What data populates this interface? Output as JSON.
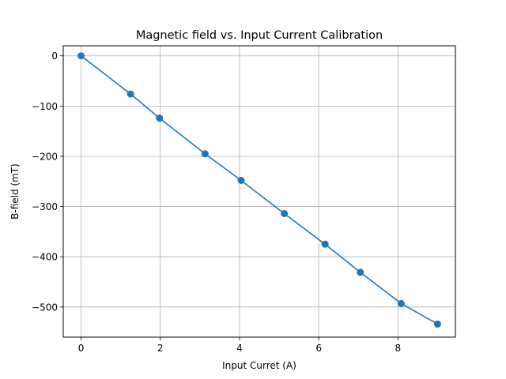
{
  "chart_data": {
    "type": "line",
    "title": "Magnetic field vs. Input Current Calibration",
    "xlabel": "Input Curret (A)",
    "ylabel": "B-field (mT)",
    "xlim": [
      -0.45,
      9.45
    ],
    "ylim": [
      -560,
      20
    ],
    "xticks": [
      0,
      2,
      4,
      6,
      8
    ],
    "yticks": [
      0,
      -100,
      -200,
      -300,
      -400,
      -500
    ],
    "grid": true,
    "marker": "circle",
    "series": [
      {
        "x": [
          0,
          1.25,
          1.98,
          3.13,
          4.04,
          5.13,
          6.16,
          7.05,
          8.08,
          9.0
        ],
        "y": [
          0,
          -76,
          -124,
          -195,
          -248,
          -314,
          -375,
          -431,
          -493,
          -534
        ]
      }
    ]
  },
  "colors": {
    "series": "#1f77b4",
    "grid": "#b0b0b0",
    "axes": "#000000"
  }
}
